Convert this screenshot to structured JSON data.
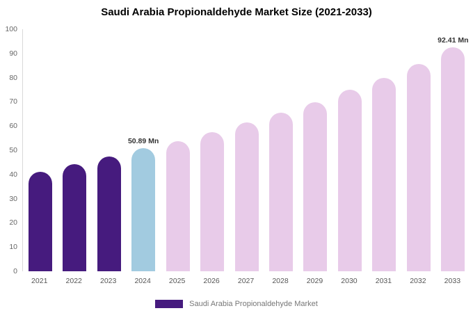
{
  "title": "Saudi Arabia Propionaldehyde Market Size (2021-2033)",
  "legend": {
    "label": "Saudi Arabia Propionaldehyde Market",
    "swatch_color": "#461B7E"
  },
  "colors": {
    "historical_purple": "#461B7E",
    "base_year_blue": "#A2CBE0",
    "forecast_pink": "#E8CBE9",
    "axis_line": "#d9d9d9",
    "tick_text": "#666666",
    "label_text": "#333333"
  },
  "chart_data": {
    "type": "bar",
    "title": "Saudi Arabia Propionaldehyde Market Size (2021-2033)",
    "xlabel": "",
    "ylabel": "",
    "ylim": [
      0,
      100
    ],
    "yticks": [
      0,
      10,
      20,
      30,
      40,
      50,
      60,
      70,
      80,
      90,
      100
    ],
    "grid": false,
    "legend_position": "bottom",
    "categories": [
      "2021",
      "2022",
      "2023",
      "2024",
      "2025",
      "2026",
      "2027",
      "2028",
      "2029",
      "2030",
      "2031",
      "2032",
      "2033"
    ],
    "values": [
      41.1,
      44.3,
      47.5,
      50.89,
      53.8,
      57.5,
      61.4,
      65.6,
      69.9,
      74.9,
      79.9,
      85.7,
      92.41
    ],
    "bar_colors": [
      "#461B7E",
      "#461B7E",
      "#461B7E",
      "#A2CBE0",
      "#E8CBE9",
      "#E8CBE9",
      "#E8CBE9",
      "#E8CBE9",
      "#E8CBE9",
      "#E8CBE9",
      "#E8CBE9",
      "#E8CBE9",
      "#E8CBE9"
    ],
    "annotations": [
      {
        "category": "2024",
        "index": 3,
        "text": "50.89 Mn"
      },
      {
        "category": "2033",
        "index": 12,
        "text": "92.41 Mn"
      }
    ],
    "series_name": "Saudi Arabia Propionaldehyde Market"
  }
}
